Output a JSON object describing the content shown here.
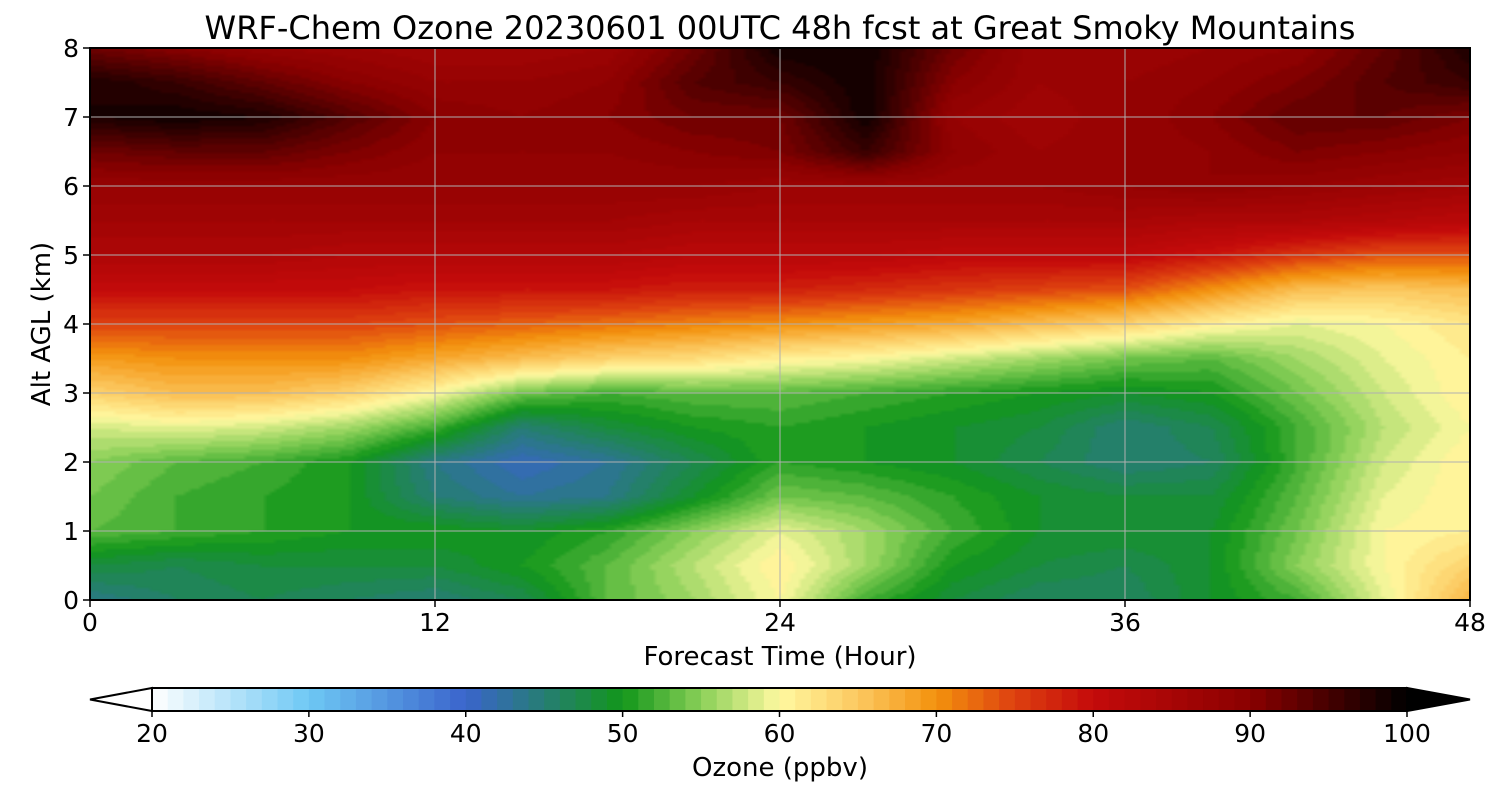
{
  "chart_data": {
    "type": "heatmap",
    "title": "WRF-Chem Ozone  20230601 00UTC 48h fcst at Great Smoky Mountains",
    "xlabel": "Forecast Time (Hour)",
    "ylabel": "Alt AGL (km)",
    "xlim": [
      0,
      48
    ],
    "ylim": [
      0,
      8
    ],
    "xticks": [
      0,
      12,
      24,
      36,
      48
    ],
    "yticks": [
      0,
      1,
      2,
      3,
      4,
      5,
      6,
      7,
      8
    ],
    "grid": true,
    "x": [
      0,
      3,
      6,
      9,
      12,
      15,
      18,
      21,
      24,
      27,
      30,
      33,
      36,
      39,
      42,
      45,
      48
    ],
    "y": [
      0,
      0.5,
      1,
      1.5,
      2,
      2.5,
      3,
      3.5,
      4,
      4.5,
      5,
      5.5,
      6,
      6.5,
      7,
      7.5,
      8
    ],
    "z": [
      [
        44,
        46,
        47,
        46,
        45,
        47,
        53,
        56,
        60,
        52,
        48,
        46,
        46,
        49,
        52,
        59,
        67
      ],
      [
        48,
        47,
        48,
        48,
        48,
        50,
        53,
        57,
        61,
        56,
        50,
        48,
        47,
        49,
        55,
        60,
        64
      ],
      [
        53,
        52,
        51,
        50,
        50,
        49,
        51,
        55,
        59,
        56,
        52,
        49,
        49,
        49,
        54,
        60,
        61
      ],
      [
        54,
        52,
        51,
        50,
        45,
        43,
        44,
        49,
        54,
        53,
        51,
        49,
        48,
        48,
        53,
        59,
        61
      ],
      [
        55,
        53,
        52,
        50,
        44,
        41,
        43,
        47,
        51,
        50,
        49,
        47,
        45,
        46,
        52,
        58,
        61
      ],
      [
        58,
        59,
        58,
        56,
        52,
        45,
        48,
        50,
        51,
        50,
        49,
        48,
        45,
        47,
        52,
        57,
        60
      ],
      [
        64,
        66,
        66,
        64,
        60,
        54,
        52,
        53,
        53,
        52,
        51,
        50,
        49,
        50,
        54,
        58,
        61
      ],
      [
        69,
        70,
        70,
        70,
        68,
        66,
        64,
        63,
        61,
        60,
        58,
        56,
        54,
        53,
        56,
        59,
        61
      ],
      [
        75,
        75,
        75,
        75,
        74,
        73,
        72,
        71,
        70,
        69,
        68,
        66,
        64,
        61,
        59,
        60,
        62
      ],
      [
        80,
        80,
        80,
        80,
        79,
        79,
        79,
        78,
        78,
        77,
        76,
        75,
        74,
        70,
        66,
        65,
        66
      ],
      [
        84,
        84,
        84,
        83,
        83,
        83,
        83,
        82,
        82,
        82,
        81,
        81,
        81,
        79,
        76,
        74,
        74
      ],
      [
        86,
        86,
        86,
        86,
        86,
        86,
        86,
        85,
        85,
        85,
        85,
        85,
        85,
        84,
        84,
        83,
        82
      ],
      [
        88,
        88,
        88,
        88,
        88,
        88,
        88,
        88,
        87,
        87,
        87,
        87,
        88,
        89,
        88,
        87,
        86
      ],
      [
        92,
        93,
        93,
        91,
        89,
        89,
        89,
        90,
        91,
        96,
        89,
        87,
        88,
        89,
        91,
        90,
        89
      ],
      [
        98,
        99,
        98,
        94,
        90,
        89,
        90,
        92,
        92,
        99,
        88,
        86,
        88,
        90,
        93,
        93,
        91
      ],
      [
        98,
        96,
        93,
        90,
        88,
        88,
        89,
        94,
        96,
        99,
        90,
        87,
        88,
        89,
        91,
        94,
        96
      ],
      [
        92,
        90,
        88,
        87,
        86,
        86,
        87,
        92,
        99,
        99,
        92,
        87,
        87,
        88,
        89,
        93,
        98
      ]
    ],
    "colorbar": {
      "label": "Ozone  (ppbv)",
      "min": 20,
      "max": 100,
      "ticks": [
        20,
        30,
        40,
        50,
        60,
        70,
        80,
        90,
        100
      ],
      "extend": "both",
      "colors": {
        "20": "#ffffff",
        "30": "#6ec8f4",
        "40": "#3a64cc",
        "50": "#12961a",
        "55": "#8ad058",
        "60": "#fff9a0",
        "65": "#fcc860",
        "70": "#f3920d",
        "75": "#de4010",
        "80": "#c40a0a",
        "90": "#8a0000",
        "100": "#000000"
      }
    }
  }
}
